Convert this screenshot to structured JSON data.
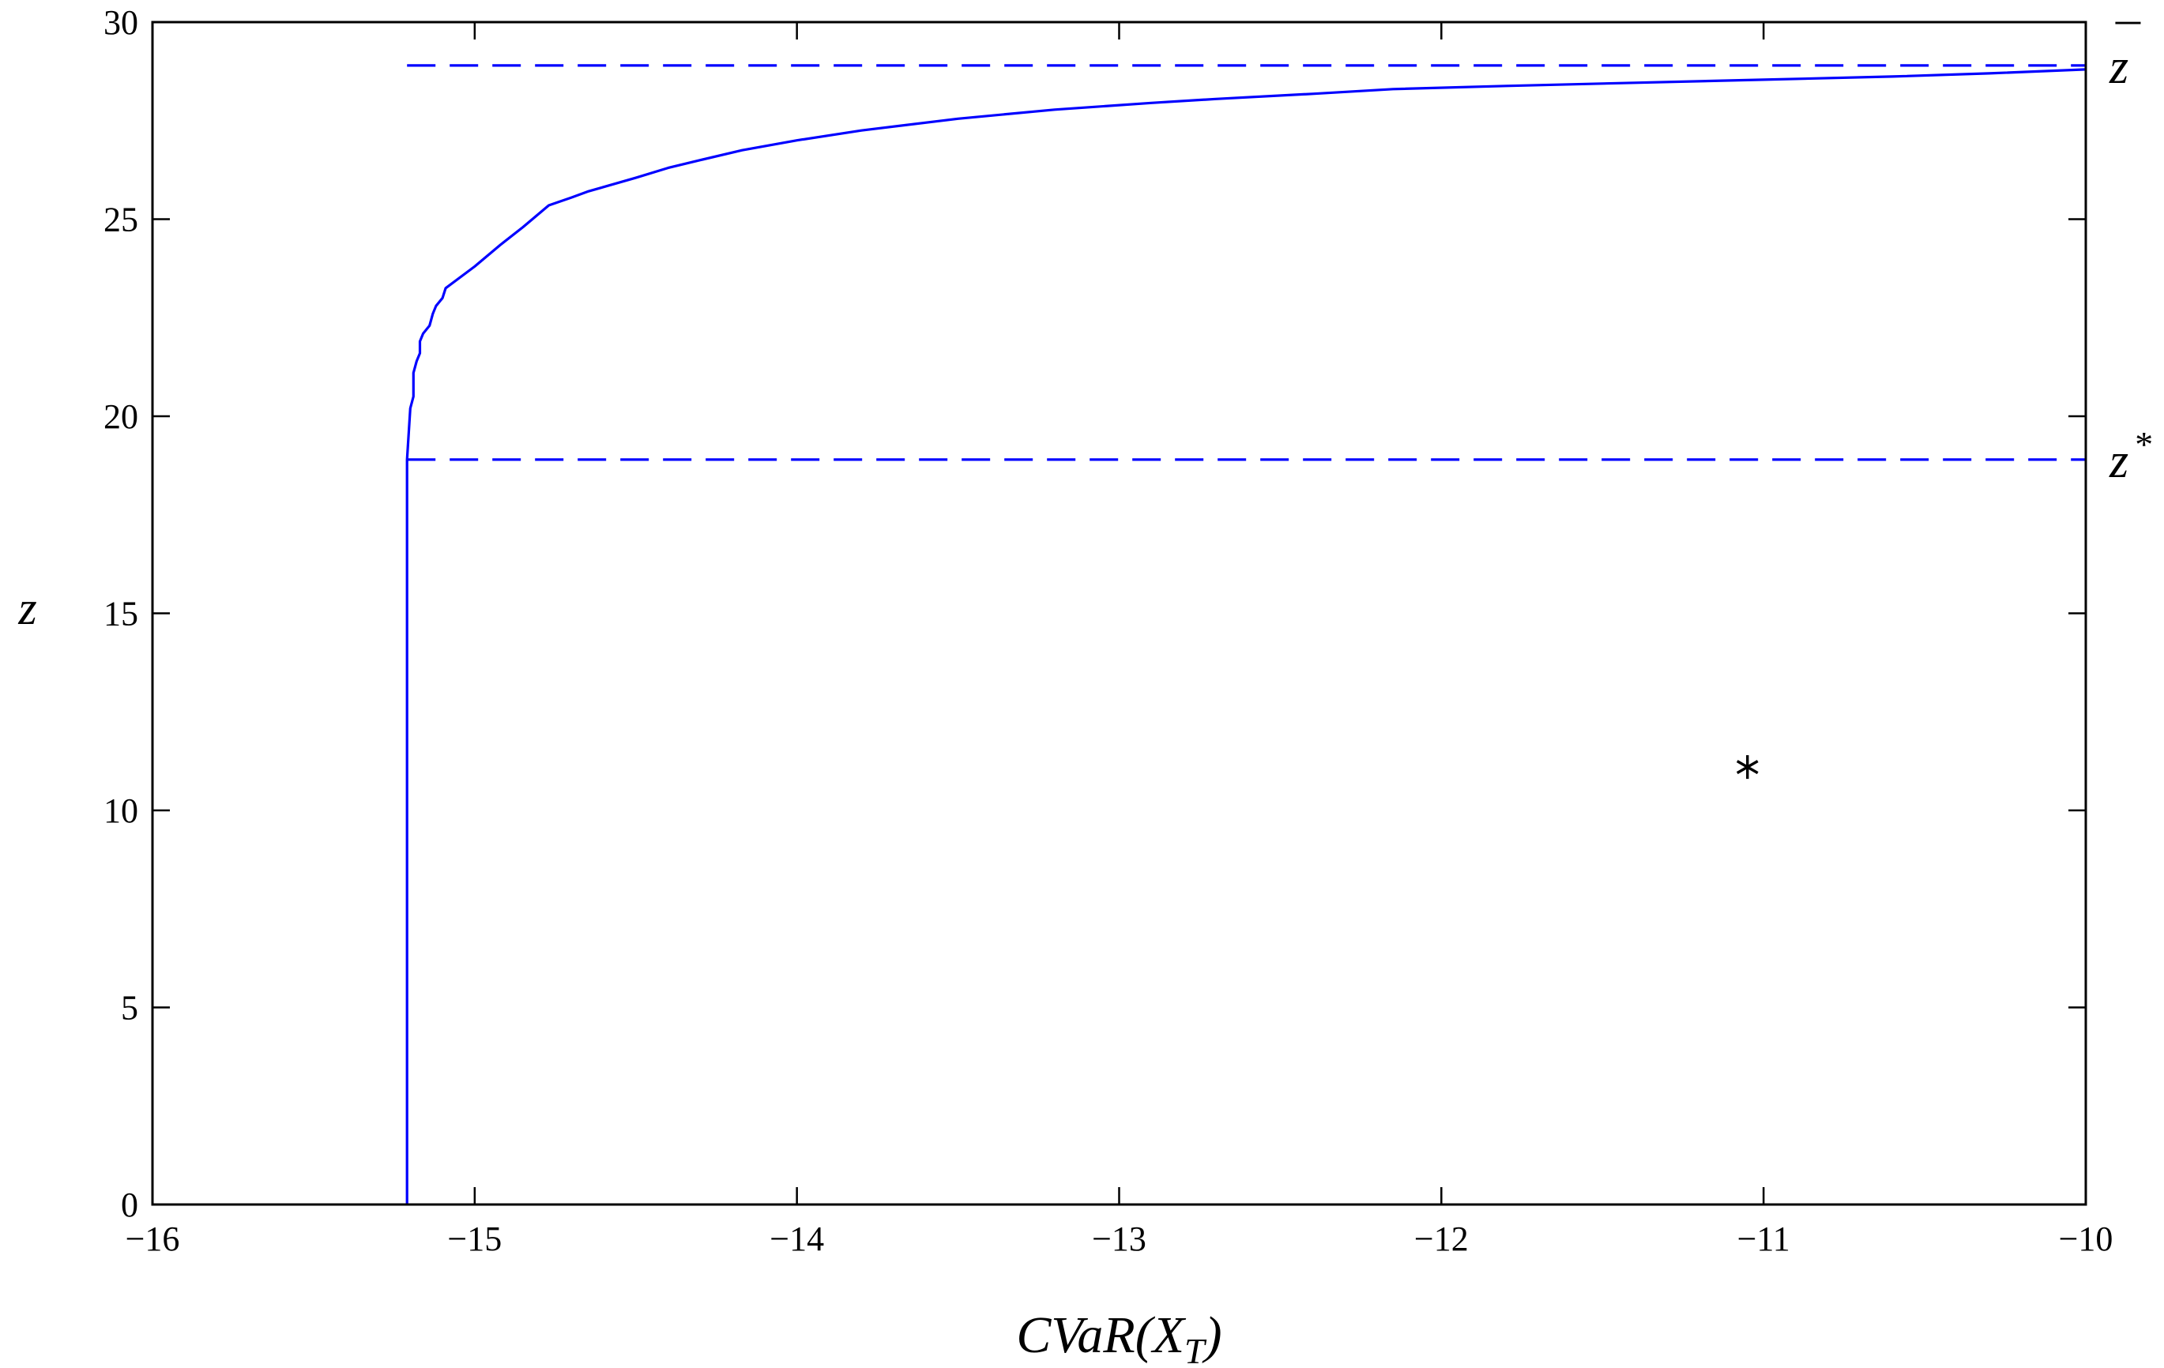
{
  "chart_data": {
    "type": "line",
    "title": "",
    "xlabel": {
      "base": "CVaR(X",
      "sub": "T",
      "close": ")"
    },
    "ylabel": "z",
    "xlim": [
      -16,
      -10
    ],
    "ylim": [
      0,
      30
    ],
    "xticks": [
      -16,
      -15,
      -14,
      -13,
      -12,
      -11,
      -10
    ],
    "yticks": [
      0,
      5,
      10,
      15,
      20,
      25,
      30
    ],
    "xtick_labels": [
      "−16",
      "−15",
      "−14",
      "−13",
      "−12",
      "−11",
      "−10"
    ],
    "ytick_labels": [
      "0",
      "5",
      "10",
      "15",
      "20",
      "25",
      "30"
    ],
    "grid": false,
    "series": [
      {
        "style": "solid",
        "color": "#0000ff",
        "x": [
          -15.21,
          -15.21,
          -15.21,
          -15.2,
          -15.19,
          -15.19,
          -15.18,
          -15.17,
          -15.17,
          -15.16,
          -15.14,
          -15.13,
          -15.12,
          -15.1,
          -15.09,
          -15.0,
          -14.92,
          -14.85,
          -14.77,
          -14.7,
          -14.65,
          -14.5,
          -14.4,
          -14.3,
          -14.17,
          -14.0,
          -13.8,
          -13.5,
          -13.2,
          -12.9,
          -12.7,
          -12.4,
          -12.15,
          -11.8,
          -11.4,
          -11.0,
          -10.6,
          -10.3,
          -10.0
        ],
        "y": [
          0,
          10,
          18.9,
          20.2,
          20.5,
          21.1,
          21.4,
          21.6,
          21.9,
          22.1,
          22.3,
          22.6,
          22.8,
          23.0,
          23.25,
          23.8,
          24.35,
          24.8,
          25.35,
          25.55,
          25.7,
          26.05,
          26.3,
          26.5,
          26.75,
          27.0,
          27.25,
          27.55,
          27.78,
          27.95,
          28.05,
          28.18,
          28.3,
          28.38,
          28.46,
          28.54,
          28.62,
          28.7,
          28.8
        ]
      },
      {
        "style": "dashed",
        "color": "#0000ff",
        "x": [
          -15.21,
          -10.0
        ],
        "y": [
          28.9,
          28.9
        ]
      },
      {
        "style": "dashed",
        "color": "#0000ff",
        "x": [
          -15.21,
          -10.0
        ],
        "y": [
          18.9,
          18.9
        ]
      }
    ],
    "markers": [
      {
        "symbol": "*",
        "x": -11.05,
        "y": 11.1,
        "color": "#000000"
      }
    ],
    "annotations": [
      {
        "base": "z",
        "mark": "¯",
        "y": 28.9
      },
      {
        "base": "z",
        "mark": "*",
        "y": 18.9
      }
    ]
  }
}
